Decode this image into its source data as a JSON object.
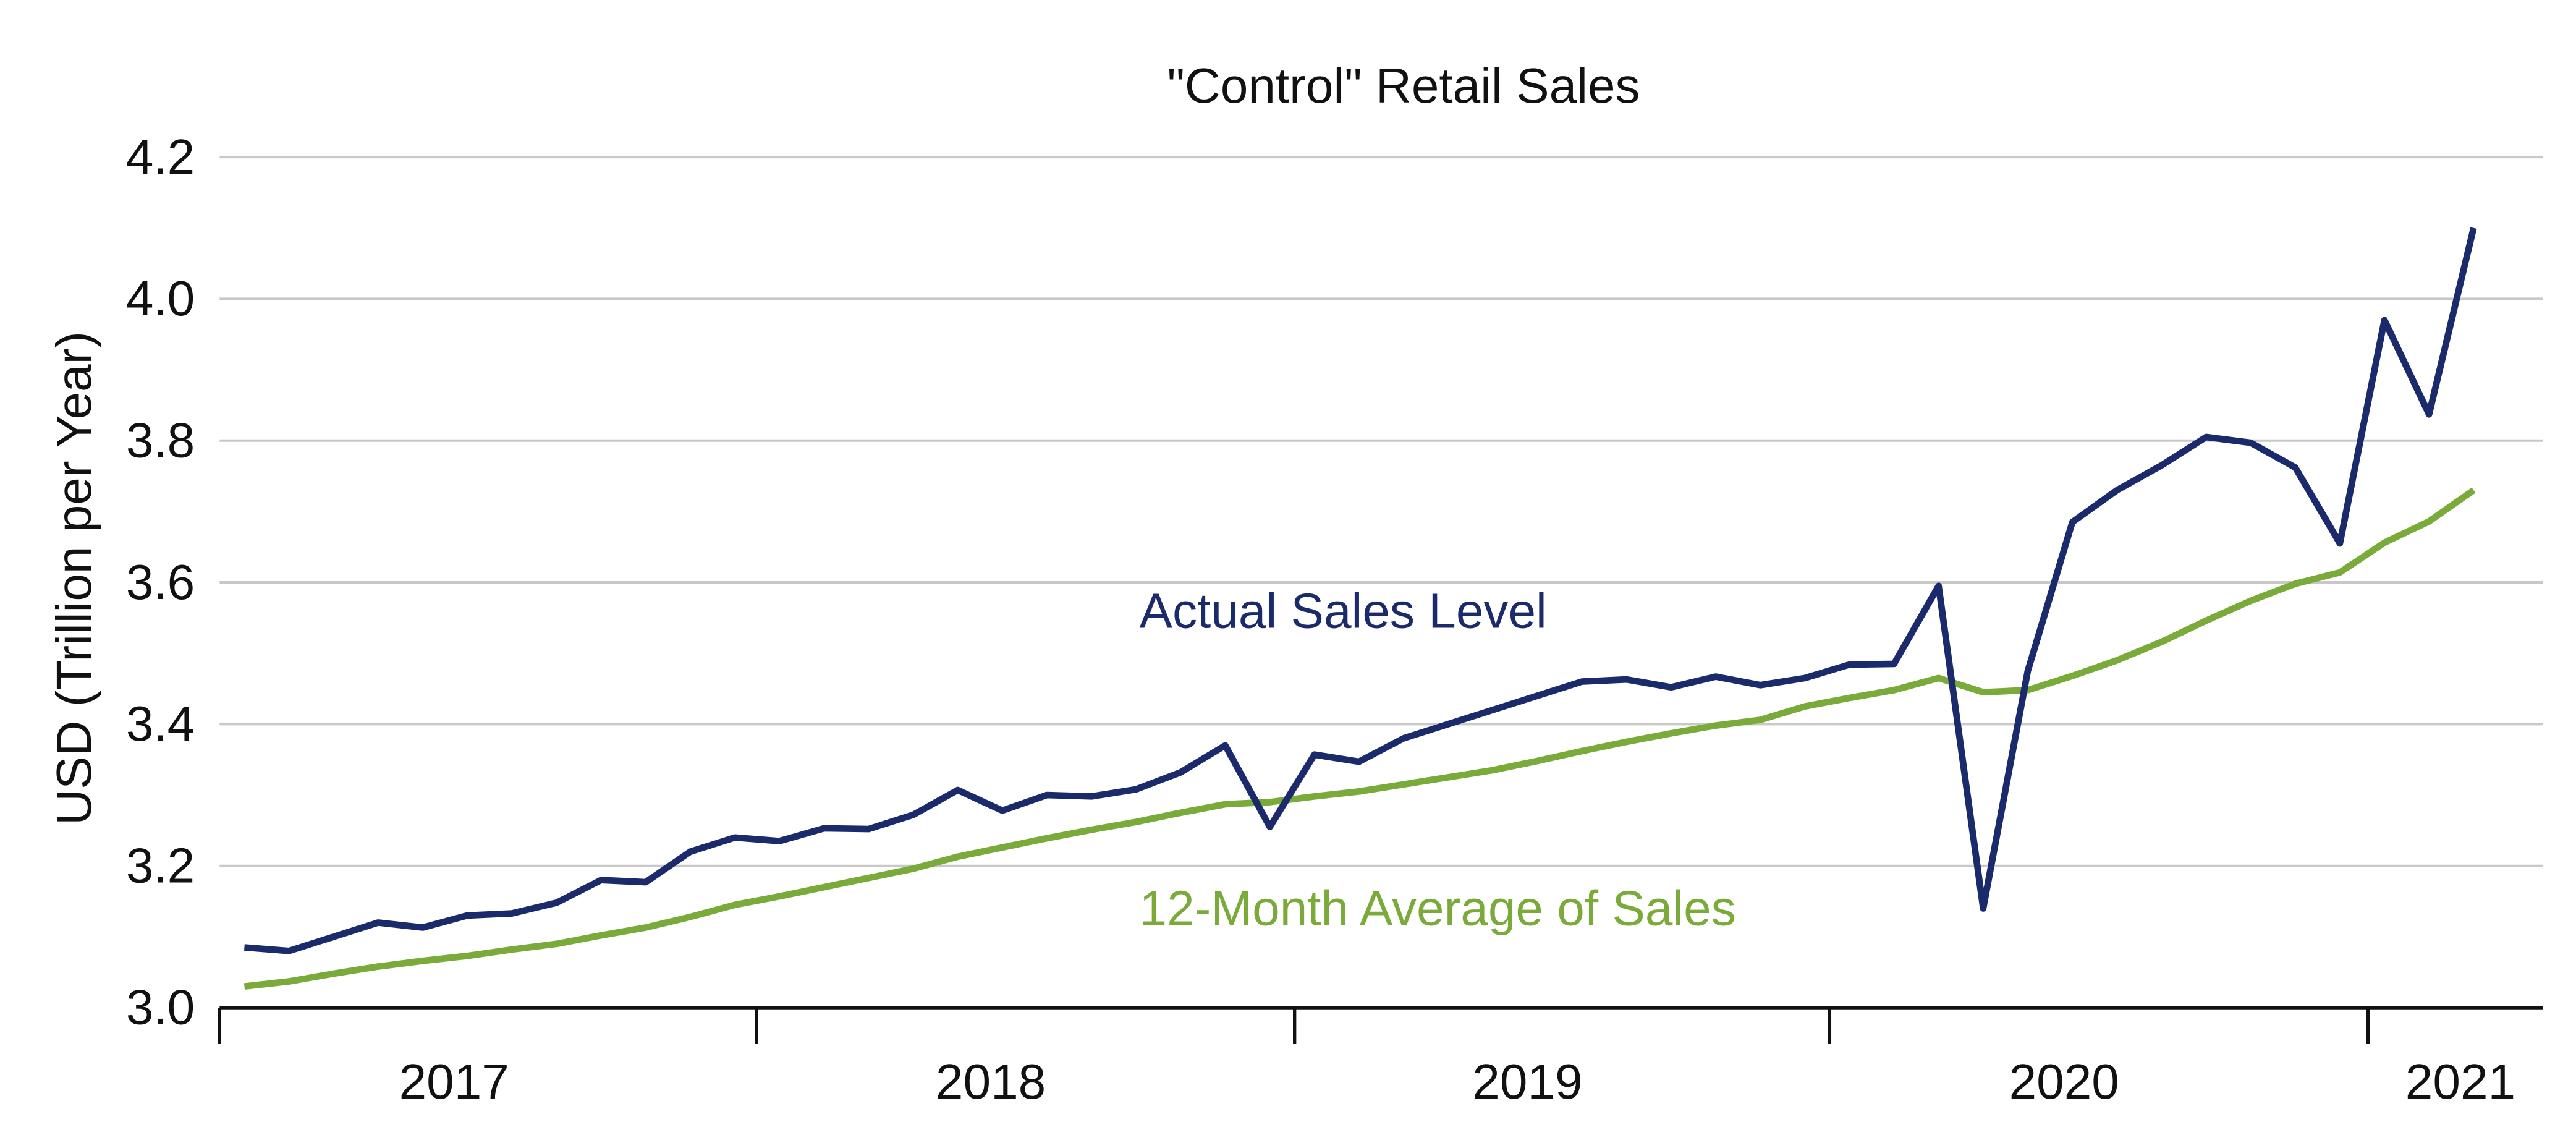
{
  "chart_data": {
    "type": "line",
    "title": "\"Control\" Retail Sales",
    "xlabel": "",
    "ylabel": "USD (Trillion per Year)",
    "ylim": [
      3.0,
      4.2
    ],
    "yticks": [
      "3.0",
      "3.2",
      "3.4",
      "3.6",
      "3.8",
      "4.0",
      "4.2"
    ],
    "xtick_labels": [
      "2017",
      "2018",
      "2019",
      "2020",
      "2021"
    ],
    "grid": "horizontal",
    "legend": "inline labels",
    "x": [
      "2017-01",
      "2017-02",
      "2017-03",
      "2017-04",
      "2017-05",
      "2017-06",
      "2017-07",
      "2017-08",
      "2017-09",
      "2017-10",
      "2017-11",
      "2017-12",
      "2018-01",
      "2018-02",
      "2018-03",
      "2018-04",
      "2018-05",
      "2018-06",
      "2018-07",
      "2018-08",
      "2018-09",
      "2018-10",
      "2018-11",
      "2018-12",
      "2019-01",
      "2019-02",
      "2019-03",
      "2019-04",
      "2019-05",
      "2019-06",
      "2019-07",
      "2019-08",
      "2019-09",
      "2019-10",
      "2019-11",
      "2019-12",
      "2020-01",
      "2020-02",
      "2020-03",
      "2020-04",
      "2020-05",
      "2020-06",
      "2020-07",
      "2020-08",
      "2020-09",
      "2020-10",
      "2020-11",
      "2020-12",
      "2021-01",
      "2021-02",
      "2021-03"
    ],
    "series": [
      {
        "name": "Actual Sales Level",
        "color": "#1b2a6b",
        "values": [
          3.085,
          3.08,
          3.1,
          3.12,
          3.113,
          3.13,
          3.133,
          3.148,
          3.18,
          3.177,
          3.22,
          3.24,
          3.235,
          3.253,
          3.252,
          3.272,
          3.307,
          3.278,
          3.3,
          3.298,
          3.308,
          3.332,
          3.37,
          3.255,
          3.357,
          3.347,
          3.38,
          3.4,
          3.42,
          3.44,
          3.46,
          3.463,
          3.452,
          3.467,
          3.455,
          3.465,
          3.484,
          3.485,
          3.595,
          3.14,
          3.475,
          3.685,
          3.73,
          3.765,
          3.805,
          3.797,
          3.762,
          3.655,
          3.97,
          3.837,
          4.1
        ]
      },
      {
        "name": "12-Month Average of Sales",
        "color": "#7aab3a",
        "values": [
          3.03,
          3.037,
          3.048,
          3.058,
          3.066,
          3.073,
          3.082,
          3.09,
          3.102,
          3.113,
          3.128,
          3.145,
          3.157,
          3.17,
          3.183,
          3.196,
          3.213,
          3.226,
          3.239,
          3.251,
          3.262,
          3.275,
          3.287,
          3.29,
          3.298,
          3.305,
          3.315,
          3.325,
          3.335,
          3.348,
          3.362,
          3.375,
          3.387,
          3.398,
          3.406,
          3.425,
          3.437,
          3.448,
          3.465,
          3.445,
          3.448,
          3.468,
          3.49,
          3.516,
          3.546,
          3.574,
          3.598,
          3.614,
          3.656,
          3.686,
          3.73
        ]
      }
    ]
  }
}
